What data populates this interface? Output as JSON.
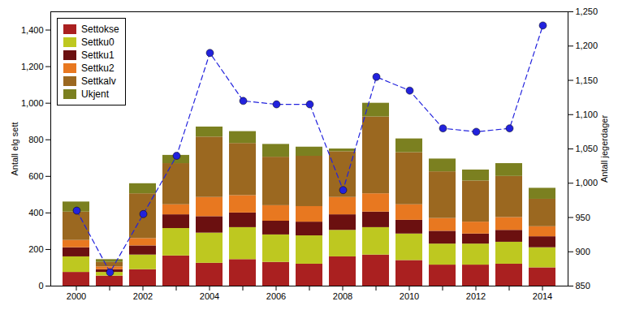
{
  "chart_data": {
    "type": "bar",
    "stacked": true,
    "categories": [
      "2000",
      null,
      "2002",
      null,
      "2004",
      null,
      "2006",
      null,
      "2008",
      null,
      "2010",
      null,
      "2012",
      null,
      "2014"
    ],
    "series": [
      {
        "name": "Settokse",
        "color": "#aa2020",
        "values": [
          75,
          55,
          90,
          165,
          125,
          145,
          130,
          120,
          160,
          170,
          140,
          115,
          115,
          120,
          100
        ]
      },
      {
        "name": "Settku0",
        "color": "#bec820",
        "values": [
          85,
          20,
          80,
          150,
          165,
          175,
          150,
          155,
          145,
          150,
          145,
          115,
          115,
          120,
          110
        ]
      },
      {
        "name": "Settku1",
        "color": "#6b1010",
        "values": [
          50,
          15,
          50,
          75,
          90,
          80,
          75,
          75,
          85,
          85,
          75,
          70,
          55,
          65,
          60
        ]
      },
      {
        "name": "Settku2",
        "color": "#e87820",
        "values": [
          40,
          15,
          40,
          55,
          105,
          95,
          85,
          85,
          95,
          100,
          85,
          70,
          65,
          70,
          55
        ]
      },
      {
        "name": "Settkalv",
        "color": "#9b6820",
        "values": [
          155,
          25,
          245,
          225,
          330,
          285,
          265,
          275,
          250,
          420,
          285,
          255,
          225,
          225,
          150
        ]
      },
      {
        "name": "Ukjent",
        "color": "#7b8020",
        "values": [
          55,
          15,
          55,
          45,
          55,
          65,
          70,
          50,
          15,
          75,
          75,
          70,
          60,
          70,
          60
        ]
      },
      {
        "type": "line",
        "axis": "y2",
        "color": "#2222dd",
        "marker": "circle",
        "line_style": "dashed",
        "values": [
          960,
          870,
          955,
          1040,
          1190,
          1120,
          1115,
          1115,
          990,
          1155,
          1135,
          1080,
          1075,
          1080,
          1230
        ]
      }
    ],
    "ylabel": "Antall elg sett",
    "y2label": "Antall jegerdager",
    "ylim": [
      0,
      1500
    ],
    "yticks": [
      0,
      200,
      400,
      600,
      800,
      1000,
      1200,
      1400
    ],
    "y2lim": [
      850,
      1250
    ],
    "y2ticks": [
      850,
      900,
      950,
      1000,
      1050,
      1100,
      1150,
      1200,
      1250
    ],
    "grid": false,
    "legend": "upper left"
  }
}
